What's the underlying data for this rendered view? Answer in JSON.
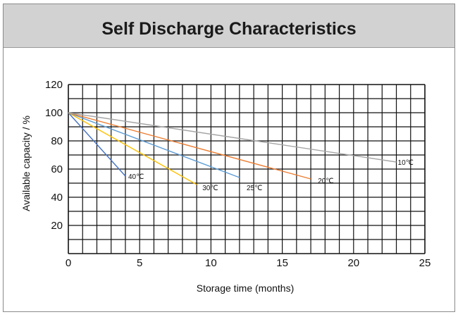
{
  "chart_data": {
    "type": "line",
    "title": "Self Discharge Characteristics",
    "xlabel": "Storage time (months)",
    "ylabel": "Available capacity / %",
    "xlim": [
      0,
      25
    ],
    "ylim": [
      0,
      120
    ],
    "xticks": [
      0,
      5,
      10,
      15,
      20,
      25
    ],
    "yticks": [
      20,
      40,
      60,
      80,
      100,
      120
    ],
    "grid": true,
    "series": [
      {
        "name": "40℃",
        "color": "#4472c4",
        "x": [
          0,
          4
        ],
        "y": [
          100,
          55
        ],
        "label_pos": [
          4.2,
          55
        ]
      },
      {
        "name": "30℃",
        "color": "#ffc000",
        "x": [
          0,
          9
        ],
        "y": [
          100,
          49
        ],
        "label_pos": [
          9.4,
          47
        ]
      },
      {
        "name": "25℃",
        "color": "#5b9bd5",
        "x": [
          0,
          12
        ],
        "y": [
          100,
          54
        ],
        "label_pos": [
          12.5,
          47
        ]
      },
      {
        "name": "20℃",
        "color": "#ed7d31",
        "x": [
          0,
          17
        ],
        "y": [
          100,
          53
        ],
        "label_pos": [
          17.5,
          52
        ]
      },
      {
        "name": "10℃",
        "color": "#a5a5a5",
        "x": [
          0,
          23
        ],
        "y": [
          100,
          65
        ],
        "label_pos": [
          23.1,
          65
        ]
      }
    ]
  }
}
